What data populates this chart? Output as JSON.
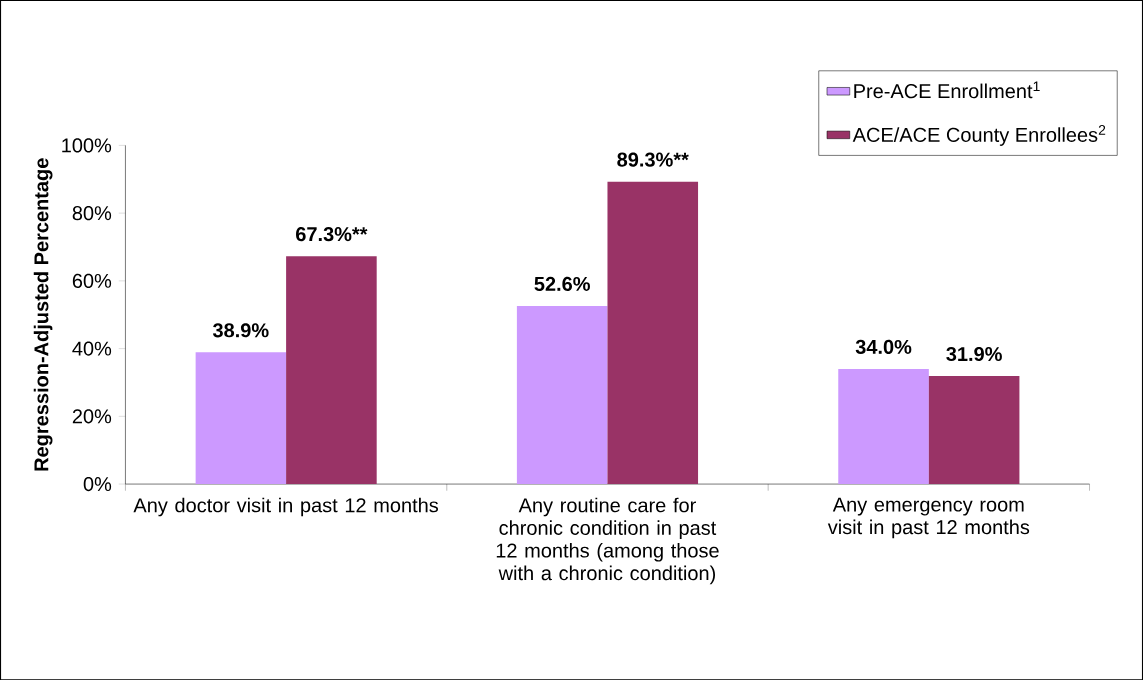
{
  "chart_data": {
    "type": "bar",
    "ylabel": "Regression-Adjusted Percentage",
    "categories": [
      "Any doctor visit in past 12 months",
      "Any routine care for chronic condition in past 12 months (among those with a chronic condition)",
      "Any emergency room visit in past 12 months"
    ],
    "series": [
      {
        "name": "Pre-ACE Enrollment$^{1}$",
        "color": "#cc99ff",
        "values": [
          38.9,
          52.6,
          34.0
        ],
        "value_labels": [
          "38.9%",
          "52.6%",
          "34.0%"
        ]
      },
      {
        "name": "ACE/ACE County Enrollees$^{2}$",
        "color": "#993366",
        "values": [
          67.3,
          89.3,
          31.9
        ],
        "value_labels": [
          "67.3%**",
          "89.3%**",
          "31.9%"
        ]
      }
    ],
    "ylim": [
      0,
      100
    ],
    "yticks": [
      {
        "value": 0,
        "label": "0%"
      },
      {
        "value": 20,
        "label": "20%"
      },
      {
        "value": 40,
        "label": "40%"
      },
      {
        "value": 60,
        "label": "60%"
      },
      {
        "value": 80,
        "label": "80%"
      },
      {
        "value": 100,
        "label": "100%"
      }
    ],
    "grid": false,
    "legend": "top right"
  }
}
